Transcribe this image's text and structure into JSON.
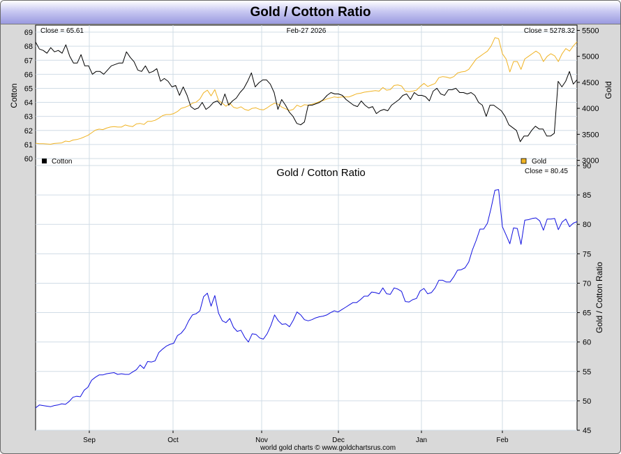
{
  "title": "Gold / Cotton Ratio",
  "footer": "world gold charts © www.goldchartsrus.com",
  "colors": {
    "cotton": "#000000",
    "gold": "#f0b323",
    "ratio": "#1010e0"
  },
  "month_labels": [
    "Sep",
    "Oct",
    "Nov",
    "Dec",
    "Jan",
    "Feb"
  ],
  "chart_data": [
    {
      "type": "line",
      "date": "Feb-27  2026",
      "left_close": "Close = 65.61",
      "right_close": "Close = 5278.32",
      "ylabel_left": "Cotton",
      "ylabel_right": "Gold",
      "ylim_left": [
        59.5,
        69.5
      ],
      "ylim_right": [
        2900,
        5600
      ],
      "yticks_left": [
        60,
        61,
        62,
        63,
        64,
        65,
        66,
        67,
        68,
        69
      ],
      "yticks_right": [
        3000,
        3500,
        4000,
        4500,
        5000,
        5500
      ],
      "grid": true,
      "legend": [
        "Cotton",
        "Gold"
      ],
      "legend_placement": "bottom-left and bottom-right",
      "series": [
        {
          "name": "Cotton",
          "axis": "left",
          "values": [
            68.3,
            67.8,
            67.7,
            67.5,
            67.9,
            67.6,
            67.7,
            67.5,
            68.1,
            67.3,
            66.8,
            66.8,
            67.4,
            66.6,
            66.6,
            66.0,
            66.2,
            66.2,
            66.0,
            66.3,
            66.6,
            66.7,
            66.8,
            66.8,
            67.6,
            67.2,
            66.9,
            66.3,
            66.2,
            66.6,
            66.1,
            66.2,
            66.4,
            65.5,
            65.7,
            65.5,
            65.1,
            65.2,
            64.5,
            65.1,
            64.5,
            63.7,
            63.5,
            63.6,
            64.0,
            63.5,
            63.7,
            64.0,
            64.1,
            63.8,
            64.6,
            63.8,
            64.1,
            64.3,
            64.7,
            65.0,
            65.5,
            66.1,
            65.1,
            65.4,
            65.6,
            65.6,
            65.3,
            64.7,
            63.5,
            64.2,
            63.8,
            63.3,
            63.0,
            62.5,
            62.4,
            62.6,
            63.8,
            63.8,
            63.9,
            64.0,
            64.2,
            64.5,
            64.7,
            64.6,
            64.6,
            64.5,
            64.2,
            64.0,
            63.8,
            63.7,
            64.1,
            63.8,
            63.6,
            63.7,
            63.2,
            63.4,
            63.5,
            63.4,
            63.8,
            64.0,
            64.2,
            64.5,
            64.6,
            64.2,
            64.7,
            64.5,
            64.5,
            64.4,
            64.1,
            64.8,
            65.0,
            64.6,
            64.5,
            64.9,
            64.9,
            65.0,
            64.7,
            64.7,
            64.6,
            64.7,
            64.5,
            64.0,
            63.8,
            63.0,
            63.8,
            63.8,
            63.6,
            63.4,
            63.0,
            62.4,
            62.2,
            62.0,
            61.2,
            61.6,
            61.6,
            62.0,
            62.3,
            62.1,
            62.1,
            61.6,
            61.6,
            61.8,
            65.5,
            65.1,
            65.5,
            66.2,
            65.3,
            65.61
          ]
        },
        {
          "name": "Gold",
          "axis": "right",
          "values": [
            3330,
            3320,
            3320,
            3315,
            3310,
            3325,
            3330,
            3335,
            3370,
            3360,
            3390,
            3400,
            3420,
            3450,
            3480,
            3530,
            3580,
            3600,
            3590,
            3620,
            3640,
            3650,
            3640,
            3640,
            3680,
            3660,
            3650,
            3700,
            3710,
            3690,
            3750,
            3750,
            3770,
            3810,
            3860,
            3880,
            3880,
            3900,
            3940,
            4000,
            4020,
            4050,
            4100,
            4120,
            4180,
            4300,
            4350,
            4240,
            4360,
            4150,
            4100,
            4040,
            4100,
            4020,
            4000,
            4030,
            3980,
            3960,
            4000,
            4010,
            3980,
            3970,
            4010,
            4060,
            4100,
            4080,
            4020,
            3990,
            3960,
            3980,
            4060,
            4030,
            4070,
            4060,
            4080,
            4100,
            4130,
            4150,
            4180,
            4200,
            4220,
            4210,
            4220,
            4220,
            4220,
            4250,
            4280,
            4290,
            4310,
            4320,
            4330,
            4340,
            4330,
            4400,
            4350,
            4360,
            4440,
            4450,
            4430,
            4330,
            4320,
            4330,
            4350,
            4420,
            4480,
            4420,
            4450,
            4480,
            4590,
            4610,
            4600,
            4580,
            4610,
            4680,
            4700,
            4710,
            4750,
            4850,
            4950,
            5000,
            5050,
            5100,
            5200,
            5360,
            5340,
            5050,
            4950,
            4700,
            4900,
            4900,
            4750,
            4950,
            5000,
            5050,
            5100,
            5050,
            4900,
            5000,
            5050,
            5010,
            4900,
            5050,
            5150,
            5100,
            5200,
            5278.32
          ]
        }
      ]
    },
    {
      "type": "line",
      "title": "Gold  /  Cotton Ratio",
      "right_close": "Close = 80.45",
      "ylabel": "Gold / Cotton Ratio",
      "ylim": [
        45,
        90
      ],
      "yticks": [
        45,
        50,
        55,
        60,
        65,
        70,
        75,
        80,
        85,
        90
      ],
      "grid": true,
      "series": [
        {
          "axis": "right",
          "values": [
            48.8,
            49.3,
            49.2,
            49.1,
            49.0,
            49.2,
            49.3,
            49.5,
            49.4,
            49.9,
            50.6,
            50.8,
            50.7,
            51.8,
            52.3,
            53.5,
            54.0,
            54.4,
            54.4,
            54.6,
            54.7,
            54.8,
            54.5,
            54.6,
            54.5,
            54.5,
            54.9,
            55.3,
            56.1,
            55.5,
            56.7,
            56.6,
            56.8,
            58.2,
            58.8,
            59.3,
            59.6,
            59.8,
            61.1,
            61.5,
            62.3,
            63.6,
            64.6,
            64.8,
            65.3,
            67.7,
            68.3,
            66.1,
            67.9,
            64.9,
            63.6,
            63.3,
            64.0,
            62.5,
            61.8,
            62.0,
            60.8,
            60.0,
            61.4,
            61.3,
            60.7,
            60.5,
            61.4,
            62.8,
            64.6,
            63.6,
            63.0,
            63.1,
            62.6,
            63.7,
            65.1,
            64.6,
            63.8,
            63.6,
            63.8,
            64.1,
            64.3,
            64.4,
            64.6,
            65.0,
            65.3,
            65.1,
            65.5,
            65.9,
            66.3,
            66.7,
            66.7,
            67.2,
            67.8,
            67.8,
            68.5,
            68.4,
            68.2,
            69.2,
            68.2,
            68.1,
            69.2,
            69.0,
            68.6,
            66.9,
            66.8,
            67.2,
            67.4,
            68.7,
            69.1,
            68.2,
            68.4,
            69.2,
            70.5,
            70.5,
            70.2,
            70.2,
            71.1,
            72.2,
            72.3,
            72.6,
            73.6,
            75.7,
            77.3,
            79.2,
            79.2,
            80.2,
            82.8,
            85.8,
            85.9,
            79.6,
            78.2,
            76.7,
            79.4,
            79.3,
            76.6,
            80.7,
            80.8,
            81.0,
            81.1,
            80.6,
            79.0,
            80.9,
            80.9,
            81.0,
            79.1,
            80.4,
            80.9,
            79.6,
            80.2,
            80.45
          ]
        }
      ]
    }
  ]
}
